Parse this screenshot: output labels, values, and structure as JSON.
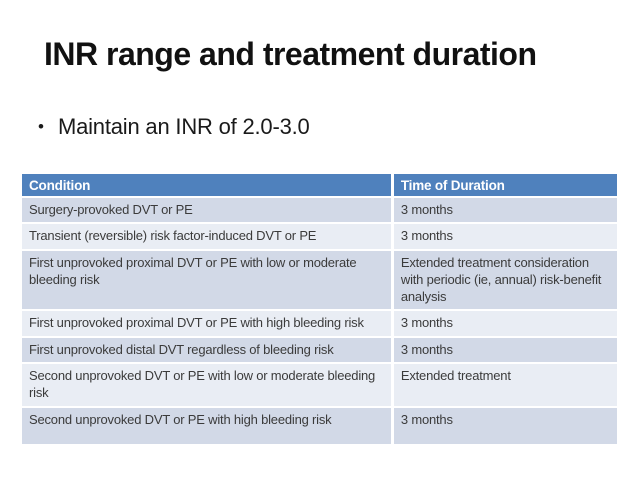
{
  "slide": {
    "title": "INR range and treatment duration",
    "bullet_glyph": "•",
    "bullet": "Maintain an INR of 2.0-3.0"
  },
  "table": {
    "columns": [
      "Condition",
      "Time of Duration"
    ],
    "rows": [
      [
        "Surgery-provoked DVT or PE",
        "3 months"
      ],
      [
        "Transient (reversible) risk factor-induced DVT or PE",
        "3 months"
      ],
      [
        "First unprovoked proximal DVT or PE with low or moderate bleeding risk",
        "Extended treatment consideration with periodic (ie, annual) risk-benefit analysis"
      ],
      [
        "First unprovoked proximal DVT or PE with high bleeding risk",
        "3 months"
      ],
      [
        "First unprovoked distal DVT regardless of bleeding risk",
        "3 months"
      ],
      [
        "Second unprovoked DVT or PE with low or moderate bleeding risk",
        "Extended treatment"
      ],
      [
        "Second unprovoked DVT or PE with high bleeding risk",
        "3 months"
      ]
    ]
  },
  "colors": {
    "header_bg": "#4F81BD",
    "header_text": "#FFFFFF",
    "row_band_dark": "#D2D9E7",
    "row_band_light": "#E9EDF4",
    "body_text": "#3B3B3B",
    "title_text": "#111111",
    "bullet_text": "#1A1A1A"
  }
}
